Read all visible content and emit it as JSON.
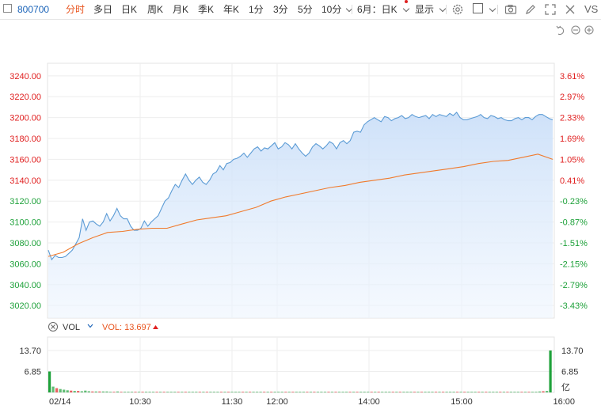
{
  "toolbar": {
    "code": "800700",
    "tabs": [
      "分时",
      "多日",
      "日K",
      "周K",
      "月K",
      "季K",
      "年K",
      "1分",
      "3分",
      "5分",
      "10分"
    ],
    "period_select": "6月：日K",
    "display": "显示",
    "vs": "VS"
  },
  "legend": {
    "vol_label": "VOL",
    "vol_value": "VOL: 13.697"
  },
  "colors": {
    "price": "#5b9bd5",
    "avg": "#f07a2c",
    "up": "#e02020",
    "down": "#1ea13a",
    "fill": "#dce9fa"
  },
  "chart_data": {
    "type": "line",
    "x_ticks": [
      "02/14",
      "10:30",
      "11:30",
      "12:00",
      "14:00",
      "15:00",
      "16:00"
    ],
    "y_ticks": [
      3240,
      3220,
      3200,
      3180,
      3160,
      3140,
      3120,
      3100,
      3080,
      3060,
      3040,
      3020
    ],
    "y_tick_labels": [
      "3240.00",
      "3220.00",
      "3200.00",
      "3180.00",
      "3160.00",
      "3140.00",
      "3120.00",
      "3100.00",
      "3080.00",
      "3060.00",
      "3040.00",
      "3020.00"
    ],
    "pct_tick_labels": [
      "3.61%",
      "2.97%",
      "2.33%",
      "1.69%",
      "1.05%",
      "0.41%",
      "-0.23%",
      "-0.87%",
      "-1.51%",
      "-2.15%",
      "-2.79%",
      "-3.43%"
    ],
    "ylim": [
      3008,
      3252
    ],
    "series": [
      {
        "values": [
          3073,
          3064,
          3068,
          3066,
          3066,
          3067,
          3070,
          3073,
          3079,
          3085,
          3103,
          3092,
          3100,
          3101,
          3098,
          3096,
          3100,
          3108,
          3101,
          3106,
          3113,
          3106,
          3103,
          3103,
          3096,
          3092,
          3092,
          3094,
          3101,
          3096,
          3100,
          3103,
          3106,
          3113,
          3120,
          3123,
          3130,
          3136,
          3133,
          3140,
          3146,
          3140,
          3136,
          3140,
          3143,
          3138,
          3136,
          3140,
          3146,
          3148,
          3154,
          3150,
          3156,
          3157,
          3160,
          3161,
          3163,
          3166,
          3162,
          3166,
          3170,
          3172,
          3168,
          3171,
          3170,
          3173,
          3176,
          3170,
          3172,
          3176,
          3174,
          3170,
          3175,
          3170,
          3166,
          3163,
          3166,
          3172,
          3175,
          3173,
          3170,
          3173,
          3177,
          3175,
          3170,
          3176,
          3178,
          3175,
          3178,
          3186,
          3187,
          3186,
          3193,
          3196,
          3198,
          3200,
          3198,
          3196,
          3201,
          3200,
          3197,
          3199,
          3200,
          3202,
          3199,
          3200,
          3203,
          3201,
          3200,
          3201,
          3202,
          3199,
          3203,
          3201,
          3203,
          3202,
          3201,
          3204,
          3202,
          3205,
          3200,
          3198,
          3198,
          3199,
          3200,
          3201,
          3203,
          3200,
          3199,
          3202,
          3201,
          3199,
          3200,
          3198,
          3197,
          3197,
          3199,
          3200,
          3198,
          3200,
          3200,
          3198,
          3201,
          3203,
          3203,
          3201,
          3199,
          3198
        ]
      },
      {
        "values": [
          3067,
          3071,
          3079,
          3085,
          3090,
          3091,
          3093,
          3094,
          3094,
          3098,
          3102,
          3104,
          3106,
          3110,
          3114,
          3120,
          3124,
          3127,
          3130,
          3133,
          3135,
          3138,
          3140,
          3142,
          3145,
          3147,
          3149,
          3151,
          3153,
          3156,
          3158,
          3159,
          3162,
          3165,
          3160
        ]
      }
    ],
    "volume": {
      "y_tick_labels": [
        "13.70",
        "6.85"
      ],
      "unit": "亿",
      "values": [
        6.85,
        1.9,
        1.4,
        1.1,
        0.9,
        0.7,
        0.6,
        0.5,
        0.5,
        0.4,
        0.6,
        0.4,
        0.3,
        0.3,
        0.3,
        0.3,
        0.3,
        0.2,
        0.2,
        0.3,
        0.2,
        0.2,
        0.2,
        0.2,
        0.2,
        0.2,
        0.2,
        0.2,
        0.2,
        0.2,
        0.2,
        0.2,
        0.2,
        0.2,
        0.2,
        0.2,
        0.2,
        0.2,
        0.2,
        0.2,
        0.2,
        0.2,
        0.2,
        0.2,
        0.2,
        0.2,
        0.2,
        0.2,
        0.2,
        0.2,
        0.2,
        0.2,
        0.2,
        0.2,
        0.2,
        0.2,
        0.2,
        0.2,
        0.2,
        0.2,
        0.2,
        0.2,
        0.2,
        0.2,
        0.2,
        0.2,
        0.2,
        0.2,
        0.2,
        0.2,
        0.2,
        0.2,
        0.2,
        0.2,
        0.2,
        0.2,
        0.2,
        0.2,
        0.2,
        0.2,
        0.2,
        0.2,
        0.2,
        0.2,
        0.2,
        0.2,
        0.2,
        0.2,
        0.2,
        0.2,
        0.2,
        0.2,
        0.2,
        0.2,
        0.2,
        0.2,
        0.2,
        0.2,
        0.2,
        0.2,
        0.2,
        0.2,
        0.2,
        0.2,
        0.2,
        0.2,
        0.2,
        0.2,
        0.2,
        0.2,
        0.2,
        0.2,
        0.2,
        0.2,
        0.2,
        0.2,
        0.2,
        0.2,
        0.2,
        0.2,
        0.2,
        0.2,
        0.2,
        0.2,
        0.2,
        0.2,
        0.2,
        0.2,
        0.2,
        0.2,
        0.2,
        0.2,
        0.2,
        0.2,
        0.2,
        0.2,
        0.2,
        0.3,
        0.4,
        0.5,
        13.7
      ]
    }
  }
}
